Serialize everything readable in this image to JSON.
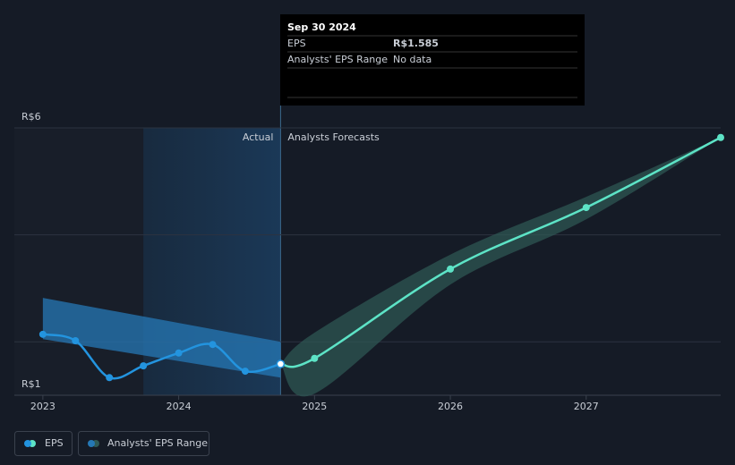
{
  "chart_data": {
    "type": "line",
    "xlim": [
      2022.79,
      2027.99
    ],
    "ylim": [
      1,
      6
    ],
    "yticks": [
      {
        "value": 1,
        "label": "R$1"
      },
      {
        "value": 6,
        "label": "R$6"
      }
    ],
    "gridlines": [
      2,
      4,
      6
    ],
    "xticks": [
      {
        "value": 2023,
        "label": "2023"
      },
      {
        "value": 2024,
        "label": "2024"
      },
      {
        "value": 2025,
        "label": "2025"
      },
      {
        "value": 2026,
        "label": "2026"
      },
      {
        "value": 2027,
        "label": "2027"
      }
    ],
    "highlight": [
      2023.74,
      2024.75
    ],
    "divider": 2024.75,
    "actual_label": "Actual",
    "forecast_label": "Analysts Forecasts",
    "series": [
      {
        "name": "EPS",
        "color": "#2394df",
        "x": [
          2023.0,
          2023.24,
          2023.49,
          2023.74,
          2024.0,
          2024.25,
          2024.49,
          2024.75
        ],
        "values": [
          2.14,
          2.02,
          1.33,
          1.55,
          1.79,
          1.95,
          1.45,
          1.585
        ],
        "forecast_color": "#5de3c6",
        "forecast_x": [
          2024.75,
          2025.0,
          2026.0,
          2027.0,
          2027.99
        ],
        "forecast_values": [
          1.585,
          1.69,
          3.36,
          4.51,
          5.82
        ]
      }
    ],
    "range": {
      "name": "Analysts' EPS Range",
      "color": "#2578b5",
      "forecast_color": "#2f5a55",
      "segments": [
        {
          "x": [
            2023.0,
            2024.75
          ],
          "low": [
            2.05,
            1.33
          ],
          "high": [
            2.82,
            2.0
          ]
        },
        {
          "x": [
            2024.75,
            2025.0,
            2026.0,
            2027.0,
            2027.99
          ],
          "low": [
            1.585,
            1.03,
            3.07,
            4.29,
            5.82
          ],
          "high": [
            1.585,
            2.17,
            3.63,
            4.71,
            5.82
          ]
        }
      ]
    },
    "tooltip": {
      "date": "Sep 30 2024",
      "rows": [
        {
          "label": "EPS",
          "value": "R$1.585"
        },
        {
          "label": "Analysts' EPS Range",
          "value": "No data"
        }
      ]
    }
  }
}
